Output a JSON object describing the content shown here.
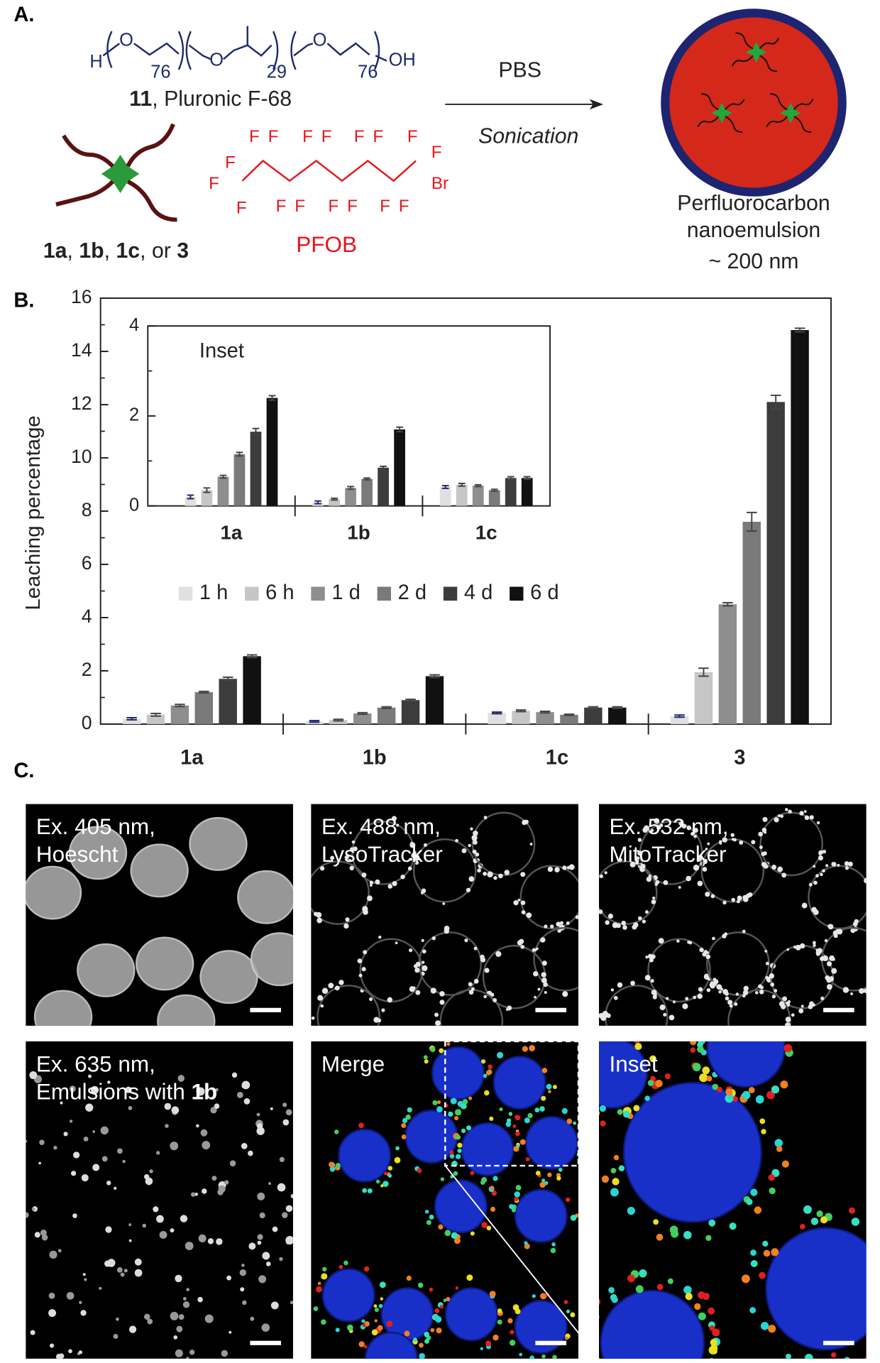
{
  "panel_labels": {
    "a": "A.",
    "b": "B.",
    "c": "C."
  },
  "panel_a": {
    "pluronic": {
      "atoms": [
        "H",
        "O",
        "O",
        "O",
        "OH"
      ],
      "subscripts": [
        "76",
        "29",
        "76"
      ],
      "caption": [
        {
          "text": "11",
          "bold": true
        },
        {
          "text": ", Pluronic F-68",
          "bold": false
        }
      ]
    },
    "porphyrin_caption": [
      {
        "text": "1a",
        "bold": true
      },
      {
        "text": ", ",
        "bold": false
      },
      {
        "text": "1b",
        "bold": true
      },
      {
        "text": ", ",
        "bold": false
      },
      {
        "text": "1c",
        "bold": true
      },
      {
        "text": ", or ",
        "bold": false
      },
      {
        "text": "3",
        "bold": true
      }
    ],
    "pfob": {
      "atoms": [
        "F",
        "F",
        "F",
        "F",
        "F",
        "F",
        "F",
        "F",
        "F",
        "F",
        "F",
        "F",
        "F",
        "F",
        "F",
        "F",
        "F",
        "Br"
      ],
      "name": "PFOB"
    },
    "reaction": {
      "above": "PBS",
      "below": "Sonication"
    },
    "product": [
      "Perfluorocarbon",
      "nanoemulsion",
      "~ 200 nm"
    ]
  },
  "chart_data": [
    {
      "type": "bar",
      "ylabel": "Leaching percentage",
      "categories": [
        "1a",
        "1b",
        "1c",
        "3"
      ],
      "ylim": [
        0,
        16
      ],
      "yticks": [
        0,
        2,
        4,
        6,
        8,
        10,
        12,
        14,
        16
      ],
      "minor_yticks": [
        1,
        3,
        5,
        7,
        9,
        11,
        13,
        15
      ],
      "legend": "center",
      "series": [
        {
          "name": "1 h",
          "color": "#e0e0e0",
          "values": [
            0.2,
            0.1,
            0.42,
            0.3
          ],
          "errors": [
            0.04,
            0.03,
            0.03,
            0.04
          ]
        },
        {
          "name": "6 h",
          "color": "#c6c6c6",
          "values": [
            0.35,
            0.15,
            0.5,
            1.95
          ],
          "errors": [
            0.05,
            0.03,
            0.03,
            0.15
          ]
        },
        {
          "name": "1 d",
          "color": "#8e8e8e",
          "values": [
            0.7,
            0.4,
            0.45,
            4.5
          ],
          "errors": [
            0.04,
            0.03,
            0.03,
            0.06
          ]
        },
        {
          "name": "2 d",
          "color": "#7a7a7a",
          "values": [
            1.2,
            0.62,
            0.35,
            7.6
          ],
          "errors": [
            0.03,
            0.03,
            0.02,
            0.35
          ]
        },
        {
          "name": "4 d",
          "color": "#3c3c3c",
          "values": [
            1.7,
            0.9,
            0.62,
            12.1
          ],
          "errors": [
            0.06,
            0.03,
            0.03,
            0.25
          ]
        },
        {
          "name": "6 d",
          "color": "#111111",
          "values": [
            2.55,
            1.8,
            0.62,
            14.8
          ],
          "errors": [
            0.05,
            0.05,
            0.03,
            0.07
          ]
        }
      ]
    },
    {
      "type": "bar",
      "title": "Inset",
      "categories": [
        "1a",
        "1b",
        "1c"
      ],
      "ylim": [
        0,
        4
      ],
      "yticks": [
        0,
        2,
        4
      ],
      "minor_yticks": [
        1,
        3
      ],
      "series": [
        {
          "name": "1 h",
          "color": "#e0e0e0",
          "values": [
            0.2,
            0.08,
            0.42
          ],
          "errors": [
            0.04,
            0.03,
            0.03
          ]
        },
        {
          "name": "6 h",
          "color": "#c6c6c6",
          "values": [
            0.35,
            0.15,
            0.47
          ],
          "errors": [
            0.05,
            0.02,
            0.03
          ]
        },
        {
          "name": "1 d",
          "color": "#8e8e8e",
          "values": [
            0.65,
            0.4,
            0.45
          ],
          "errors": [
            0.03,
            0.03,
            0.02
          ]
        },
        {
          "name": "2 d",
          "color": "#7a7a7a",
          "values": [
            1.15,
            0.6,
            0.35
          ],
          "errors": [
            0.04,
            0.02,
            0.02
          ]
        },
        {
          "name": "4 d",
          "color": "#3c3c3c",
          "values": [
            1.65,
            0.85,
            0.62
          ],
          "errors": [
            0.07,
            0.03,
            0.03
          ]
        },
        {
          "name": "6 d",
          "color": "#111111",
          "values": [
            2.4,
            1.7,
            0.62
          ],
          "errors": [
            0.05,
            0.05,
            0.03
          ]
        }
      ]
    }
  ],
  "panel_c": {
    "images": [
      {
        "lines": [
          [
            {
              "text": "Ex. 405 nm,",
              "bold": false
            }
          ],
          [
            {
              "text": "Hoescht",
              "bold": false
            }
          ]
        ]
      },
      {
        "lines": [
          [
            {
              "text": "Ex. 488 nm,",
              "bold": false
            }
          ],
          [
            {
              "text": "LysoTracker",
              "bold": false
            }
          ]
        ]
      },
      {
        "lines": [
          [
            {
              "text": "Ex. 532 nm,",
              "bold": false
            }
          ],
          [
            {
              "text": "MitoTracker",
              "bold": false
            }
          ]
        ]
      },
      {
        "lines": [
          [
            {
              "text": "Ex. 635 nm,",
              "bold": false
            }
          ],
          [
            {
              "text": "Emulsions with ",
              "bold": false
            },
            {
              "text": "1b",
              "bold": true
            }
          ]
        ]
      },
      {
        "lines": [
          [
            {
              "text": "Merge",
              "bold": false
            }
          ]
        ]
      },
      {
        "lines": [
          [
            {
              "text": "Inset",
              "bold": false
            }
          ]
        ]
      }
    ]
  }
}
